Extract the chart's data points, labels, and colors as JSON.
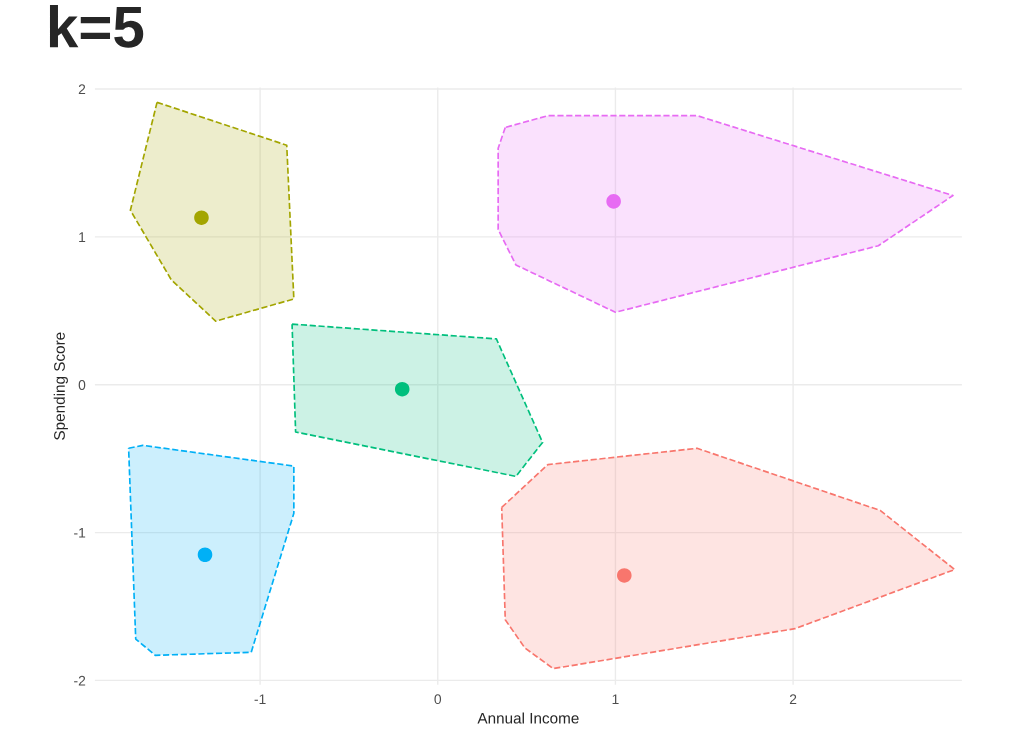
{
  "chart_data": {
    "type": "area",
    "title": "k=5",
    "xlabel": "Annual Income",
    "ylabel": "Spending Score",
    "xlim": [
      -1.93,
      2.95
    ],
    "ylim": [
      -2.03,
      2.01
    ],
    "xticks": [
      -1,
      0,
      1,
      2
    ],
    "yticks": [
      -2,
      -1,
      0,
      1,
      2
    ],
    "grid": true,
    "legend": false,
    "line_style": "dashed",
    "series": [
      {
        "color": "#a3a500",
        "x": [
          -1.58,
          -0.85,
          -0.81,
          -1.25,
          -1.5,
          -1.73
        ],
        "values": [
          1.91,
          1.62,
          0.58,
          0.43,
          0.71,
          1.18
        ]
      },
      {
        "color": "#e76bf3",
        "x": [
          0.38,
          0.34,
          0.34,
          0.44,
          1.0,
          2.48,
          2.9,
          1.46,
          0.62
        ],
        "values": [
          1.74,
          1.6,
          1.05,
          0.81,
          0.49,
          0.94,
          1.28,
          1.82,
          1.82
        ]
      },
      {
        "color": "#00bf7d",
        "x": [
          -0.82,
          0.33,
          0.59,
          0.44,
          -0.8
        ],
        "values": [
          0.41,
          0.31,
          -0.39,
          -0.62,
          -0.32
        ]
      },
      {
        "color": "#00b0f6",
        "x": [
          -1.74,
          -1.66,
          -0.81,
          -0.81,
          -1.05,
          -1.59,
          -1.7
        ],
        "values": [
          -0.43,
          -0.41,
          -0.55,
          -0.87,
          -1.81,
          -1.83,
          -1.72
        ]
      },
      {
        "color": "#f8766d",
        "x": [
          0.36,
          0.62,
          1.46,
          2.49,
          2.91,
          2.01,
          0.65,
          0.49,
          0.38
        ],
        "values": [
          -0.83,
          -0.54,
          -0.43,
          -0.85,
          -1.25,
          -1.65,
          -1.92,
          -1.78,
          -1.59
        ]
      },
      {
        "type": "scatter",
        "marker": "circle",
        "x": [
          -1.33,
          0.99,
          -0.2,
          -1.31,
          1.05
        ],
        "values": [
          1.13,
          1.24,
          -0.03,
          -1.15,
          -1.29
        ],
        "colors": [
          "#a3a500",
          "#e76bf3",
          "#00bf7d",
          "#00b0f6",
          "#f8766d"
        ]
      }
    ]
  }
}
